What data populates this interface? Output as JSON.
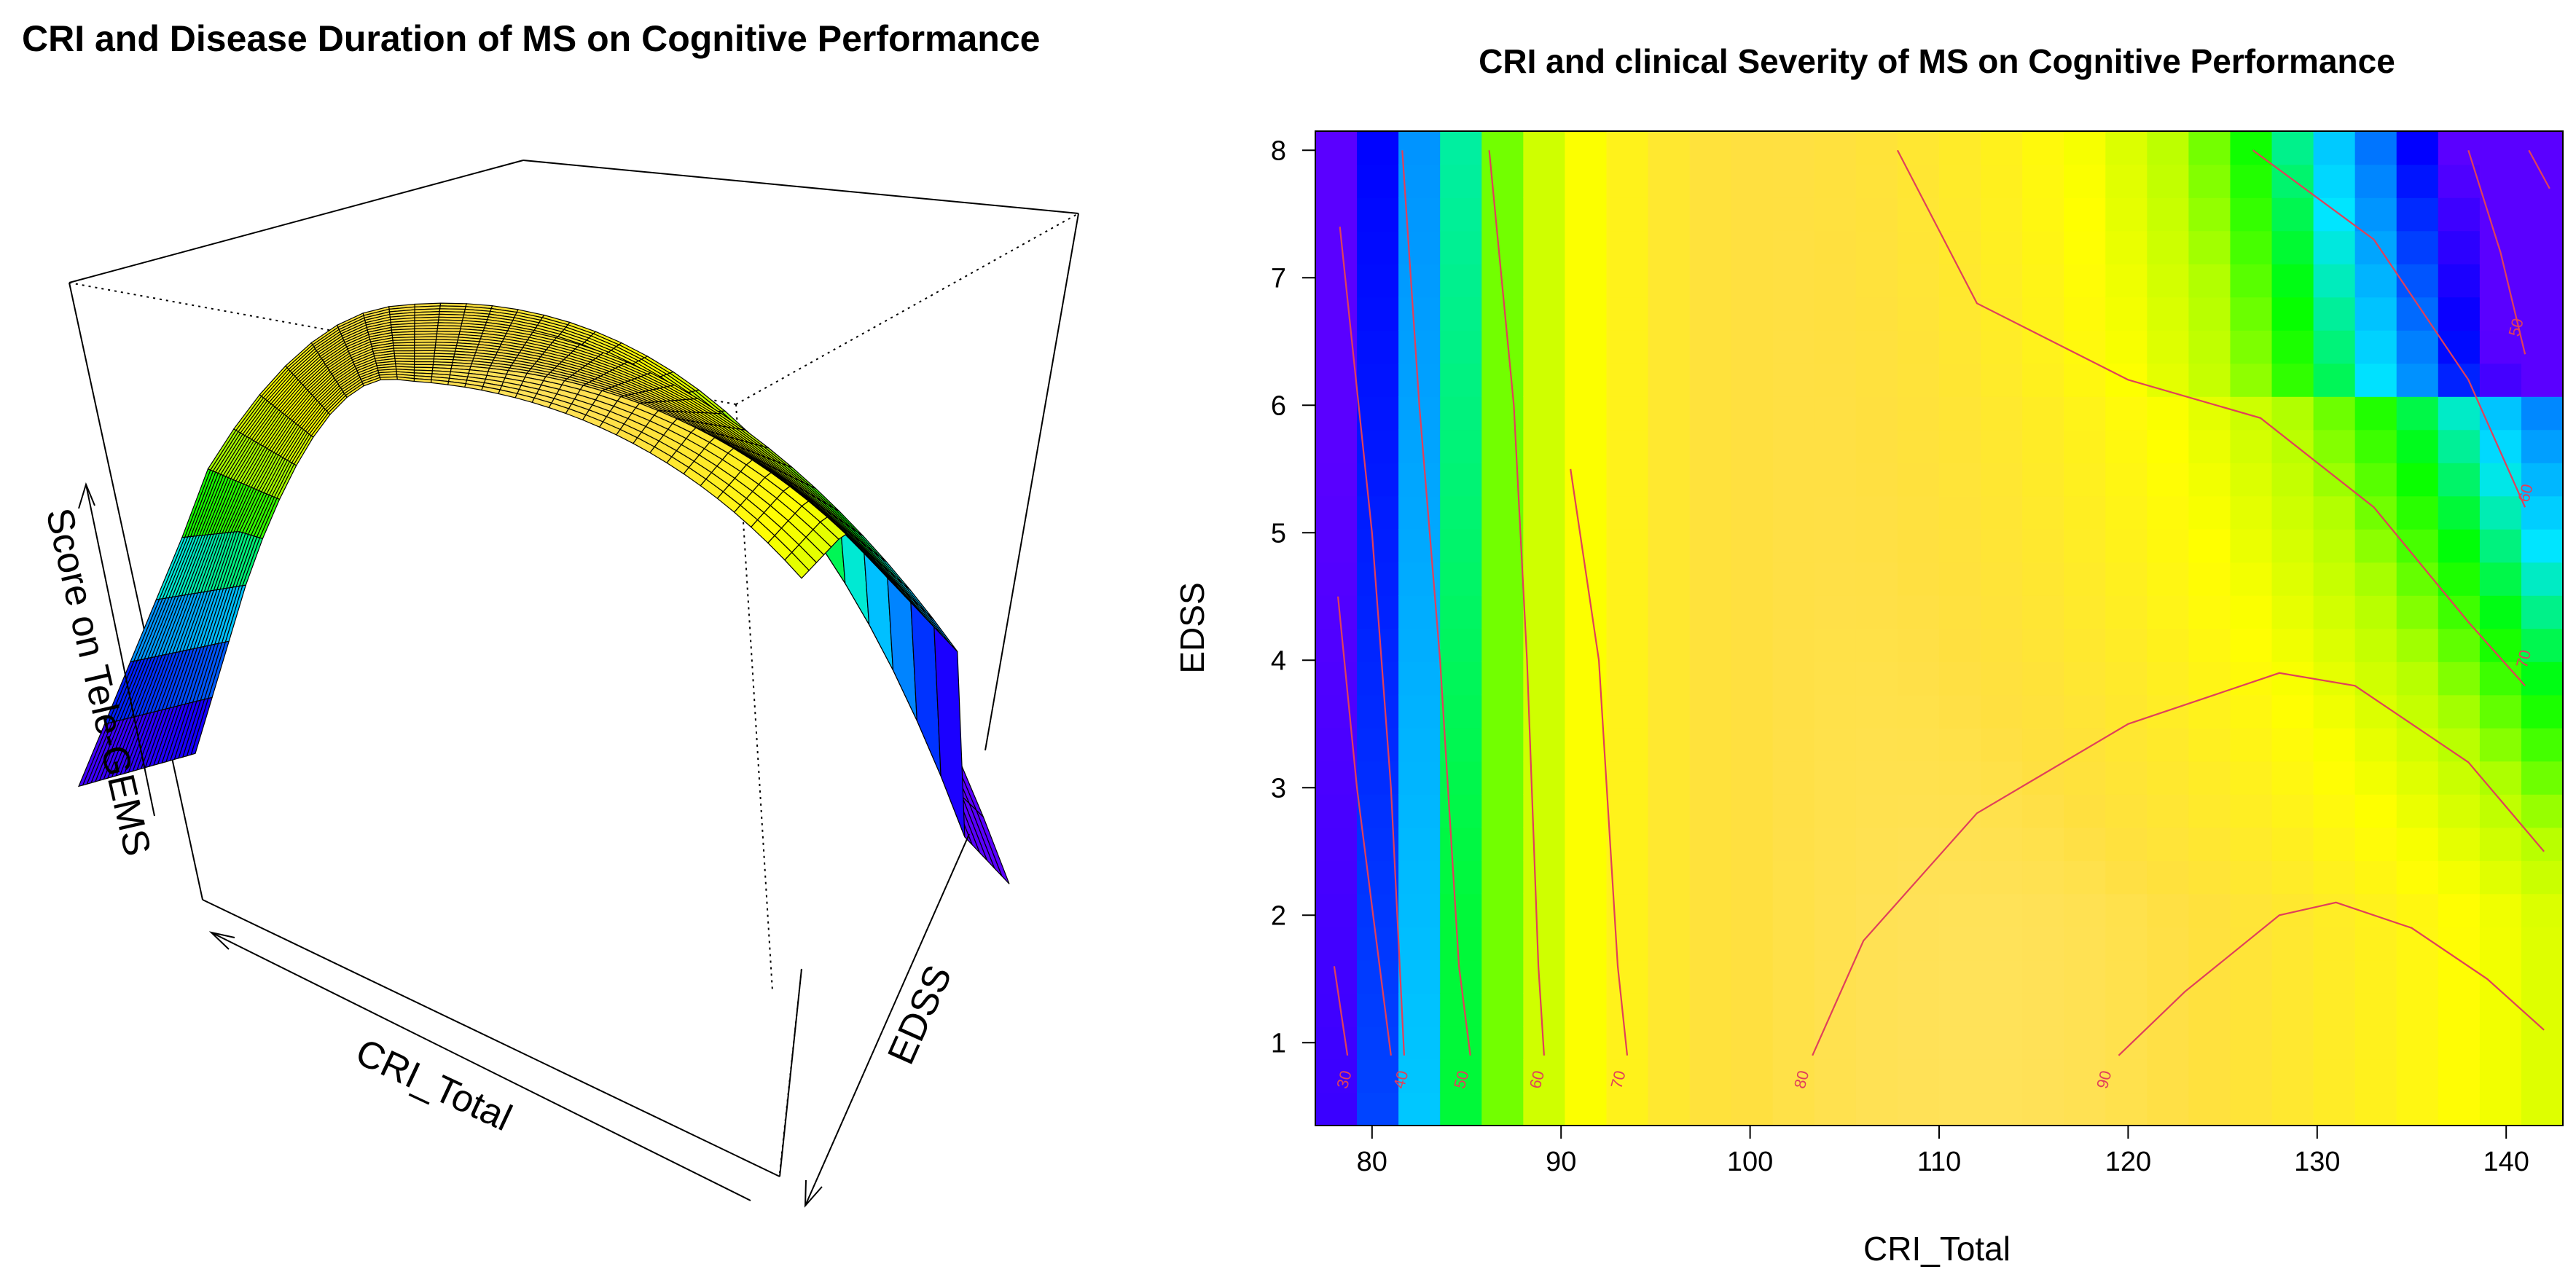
{
  "chart_data": [
    {
      "type": "surface3d",
      "title": "CRI and Disease Duration of MS on Cognitive Performance",
      "xlabel": "CRI_Total",
      "ylabel": "EDSS",
      "zlabel": "Score on Tele-GEMS",
      "x": [
        78,
        142
      ],
      "y": [
        0.4,
        8.1
      ],
      "z_peak_at_cri": 100,
      "note": "Perspective surface: score rises steeply from low CRI to a ridge near CRI 100, then falls; colored blue (low) to green, yellow, light orange (high)."
    },
    {
      "type": "heatmap",
      "title": "CRI and clinical Severity of MS on Cognitive Performance",
      "xlabel": "CRI_Total",
      "ylabel": "EDSS",
      "xlim": [
        77,
        143
      ],
      "ylim": [
        0.35,
        8.15
      ],
      "xticks": [
        "80",
        "90",
        "100",
        "110",
        "120",
        "130",
        "140"
      ],
      "yticks": [
        "1",
        "2",
        "3",
        "4",
        "5",
        "6",
        "7",
        "8"
      ],
      "contour_levels": [
        "30",
        "40",
        "50",
        "60",
        "70",
        "80",
        "90"
      ],
      "color_scale": [
        "#5a00ff",
        "#0000ff",
        "#0080ff",
        "#00e5ff",
        "#00ff00",
        "#b3ff00",
        "#ffff00",
        "#ffe040",
        "#ffe8c0"
      ],
      "score_range": [
        25,
        97
      ]
    }
  ]
}
